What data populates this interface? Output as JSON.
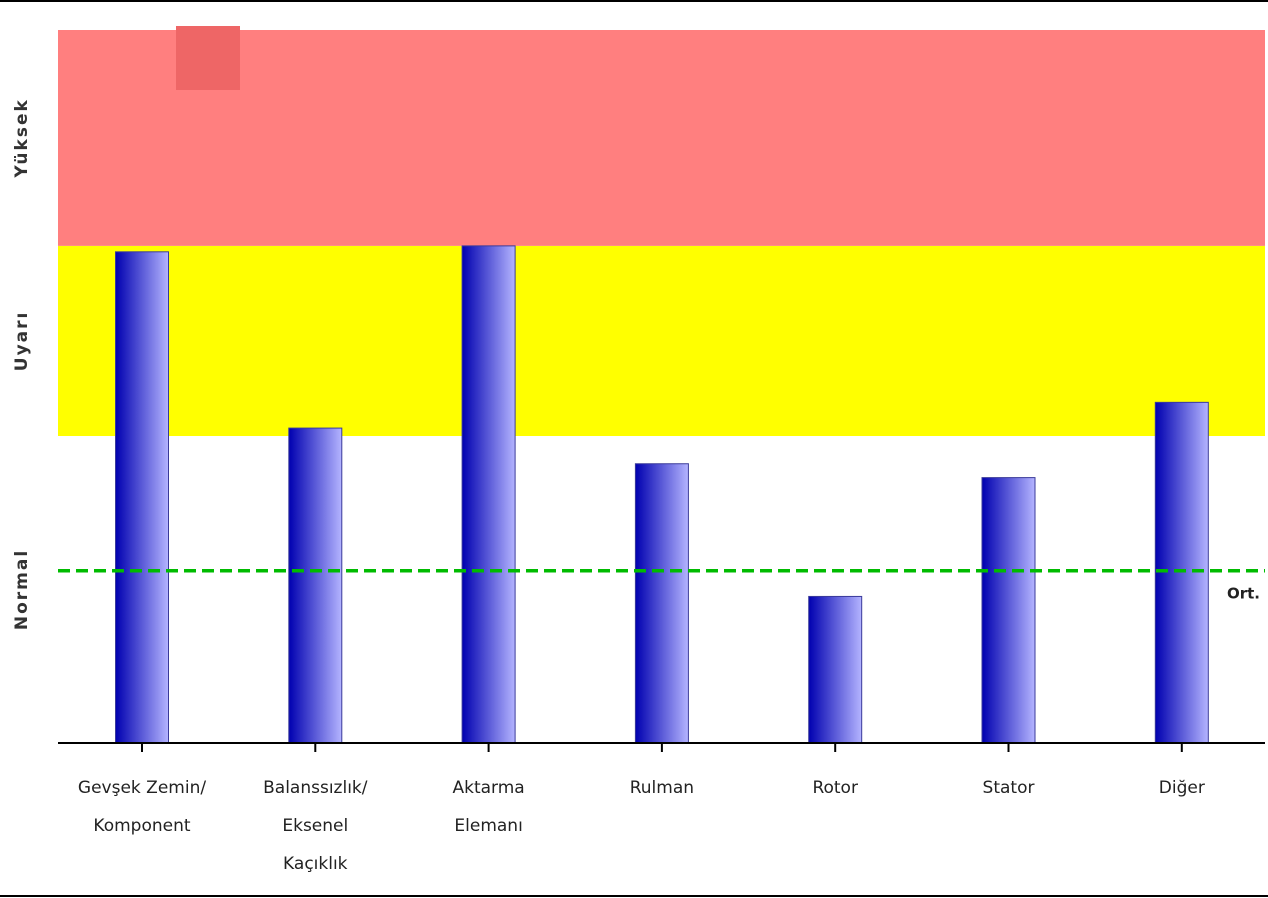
{
  "chart_data": {
    "type": "bar",
    "categories": [
      [
        "Gevşek Zemin/",
        "Komponent"
      ],
      [
        "Balanssızlık/",
        "Eksenel",
        "Kaçıklık"
      ],
      [
        "Aktarma",
        "Elemanı"
      ],
      [
        "Rulman"
      ],
      [
        "Rotor"
      ],
      [
        "Stator"
      ],
      [
        "Diğer"
      ]
    ],
    "values": [
      2.48,
      1.59,
      2.51,
      1.41,
      0.74,
      1.34,
      1.72
    ],
    "ylim": [
      0,
      3.6
    ],
    "zones": [
      {
        "label": "Normal",
        "from": 0,
        "to": 1.55,
        "color": "#ffffff"
      },
      {
        "label": "Uyarı",
        "from": 1.55,
        "to": 2.51,
        "color": "#ffff00"
      },
      {
        "label": "Yüksek",
        "from": 2.51,
        "to": 3.6,
        "color": "#ff7f7f"
      }
    ],
    "average": {
      "value": 0.87,
      "label": "Ort.",
      "color": "#00bb00"
    },
    "bar_color_dark": "#0000b0",
    "bar_color_light": "#b4b4ff",
    "grid": false,
    "legend": "none"
  }
}
